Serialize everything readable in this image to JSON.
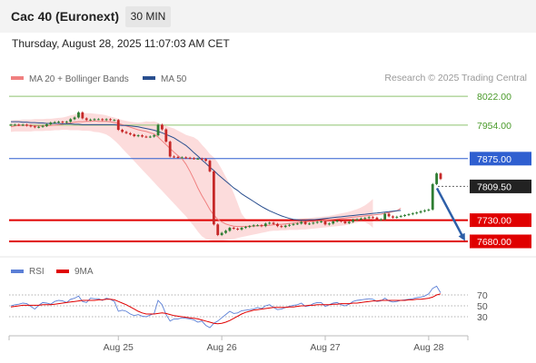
{
  "header": {
    "instrument": "Cac 40 (Euronext)",
    "timeframe": "30 MIN",
    "datetime": "Thursday, August 28, 2025 11:07:03 AM CET",
    "copyright": "Research © 2025 Trading Central"
  },
  "colors": {
    "candle_up": "#2e7d32",
    "candle_down": "#c62828",
    "bollinger_fill": "#fbd0d0",
    "ma20": "#f08080",
    "ma50": "#2a4f8f",
    "resistance_green": "#8dc26f",
    "pivot_blue": "#2f5fd0",
    "support_red": "#e00000",
    "current_price_box": "#222222",
    "arrow": "#2d5fa8",
    "rsi": "#5b7fd6",
    "rsi_ma": "#e00000"
  },
  "chart_data": [
    {
      "type": "candlestick",
      "title": "",
      "legend": [
        {
          "name": "MA 20 + Bollinger Bands",
          "color": "#f08080"
        },
        {
          "name": "MA 50",
          "color": "#2a4f8f"
        }
      ],
      "x_ticks": [
        {
          "label": "Aug 25",
          "index": 27
        },
        {
          "label": "Aug 26",
          "index": 53
        },
        {
          "label": "Aug 27",
          "index": 79
        },
        {
          "label": "Aug 28",
          "index": 105
        }
      ],
      "ylim": [
        7665,
        8035
      ],
      "levels": [
        {
          "label": "8022.00",
          "value": 8022,
          "kind": "resistance"
        },
        {
          "label": "7954.00",
          "value": 7954,
          "kind": "resistance"
        },
        {
          "label": "7875.00",
          "value": 7875,
          "kind": "pivot"
        },
        {
          "label": "7809.50",
          "value": 7809.5,
          "kind": "current"
        },
        {
          "label": "7730.00",
          "value": 7730,
          "kind": "support"
        },
        {
          "label": "7680.00",
          "value": 7680,
          "kind": "support"
        }
      ],
      "projection": {
        "from": 7809.5,
        "to": 7680
      },
      "close": [
        7955,
        7955,
        7954,
        7955,
        7953,
        7951,
        7949,
        7950,
        7952,
        7956,
        7960,
        7961,
        7962,
        7960,
        7962,
        7968,
        7972,
        7984,
        7970,
        7966,
        7967,
        7968,
        7968,
        7966,
        7968,
        7966,
        7966,
        7943,
        7938,
        7935,
        7932,
        7928,
        7930,
        7927,
        7926,
        7927,
        7930,
        7955,
        7944,
        7915,
        7880,
        7879,
        7878,
        7878,
        7877,
        7876,
        7875,
        7875,
        7874,
        7870,
        7845,
        7720,
        7695,
        7700,
        7705,
        7712,
        7710,
        7708,
        7712,
        7714,
        7716,
        7718,
        7718,
        7716,
        7722,
        7724,
        7721,
        7716,
        7714,
        7717,
        7719,
        7721,
        7722,
        7726,
        7721,
        7722,
        7724,
        7726,
        7727,
        7720,
        7722,
        7727,
        7729,
        7727,
        7723,
        7726,
        7731,
        7732,
        7734,
        7735,
        7737,
        7736,
        7731,
        7732,
        7745,
        7739,
        7736,
        7738,
        7740,
        7742,
        7744,
        7746,
        7748,
        7751,
        7753,
        7755,
        7815,
        7840,
        7827
      ],
      "ma20": [
        7950,
        7952,
        7953,
        7953,
        7953,
        7953,
        7952,
        7952,
        7952,
        7952,
        7953,
        7954,
        7955,
        7956,
        7958,
        7959,
        7961,
        7962,
        7962,
        7963,
        7963,
        7964,
        7963,
        7963,
        7963,
        7962,
        7960,
        7958,
        7955,
        7952,
        7949,
        7946,
        7943,
        7941,
        7939,
        7936,
        7933,
        7926,
        7917,
        7908,
        7899,
        7890,
        7882,
        7875,
        7862,
        7845,
        7826,
        7806,
        7788,
        7772,
        7755,
        7742,
        7732,
        7726,
        7721,
        7718,
        7716,
        7715,
        7715,
        7715,
        7716,
        7716,
        7717,
        7717,
        7718,
        7718,
        7719,
        7720,
        7720,
        7721,
        7722,
        7723,
        7724,
        7725,
        7726,
        7727,
        7727,
        7728,
        7729,
        7730,
        7731,
        7732,
        7733,
        7734,
        7735,
        7736,
        7737,
        7738,
        7739,
        7740,
        7741,
        7742,
        7743,
        7744,
        7746,
        7748,
        7750,
        7752,
        7758
      ],
      "ma50": [
        7962,
        7962,
        7962,
        7961,
        7961,
        7960,
        7960,
        7959,
        7959,
        7958,
        7958,
        7958,
        7958,
        7957,
        7957,
        7957,
        7956,
        7956,
        7955,
        7955,
        7955,
        7955,
        7955,
        7955,
        7955,
        7955,
        7955,
        7954,
        7953,
        7953,
        7952,
        7951,
        7950,
        7948,
        7946,
        7944,
        7942,
        7939,
        7936,
        7932,
        7928,
        7924,
        7918,
        7912,
        7906,
        7898,
        7889,
        7881,
        7872,
        7864,
        7855,
        7847,
        7838,
        7830,
        7822,
        7814,
        7806,
        7800,
        7792,
        7786,
        7780,
        7774,
        7768,
        7762,
        7757,
        7752,
        7748,
        7744,
        7740,
        7737,
        7734,
        7732,
        7731,
        7730,
        7730,
        7731,
        7731,
        7732,
        7733,
        7734,
        7735,
        7736,
        7737,
        7738,
        7739,
        7740,
        7741,
        7742,
        7743,
        7744,
        7745,
        7746,
        7747,
        7748,
        7749,
        7750,
        7751,
        7752,
        7753
      ],
      "bb_upper": [
        7965,
        7966,
        7966,
        7967,
        7967,
        7967,
        7968,
        7968,
        7968,
        7969,
        7969,
        7970,
        7971,
        7972,
        7974,
        7977,
        7979,
        7982,
        7982,
        7982,
        7982,
        7981,
        7980,
        7979,
        7977,
        7974,
        7972,
        7969,
        7966,
        7964,
        7962,
        7961,
        7960,
        7961,
        7963,
        7962,
        7963,
        7960,
        7955,
        7952,
        7949,
        7946,
        7941,
        7936,
        7931,
        7928,
        7925,
        7919,
        7908,
        7898,
        7886,
        7878,
        7866,
        7850,
        7832,
        7815,
        7794,
        7770,
        7745,
        7733,
        7730,
        7729,
        7729,
        7728,
        7728,
        7727,
        7728,
        7728,
        7728,
        7729,
        7730,
        7731,
        7732,
        7733,
        7734,
        7735,
        7736,
        7737,
        7738,
        7739,
        7740,
        7742,
        7744,
        7746,
        7748,
        7750,
        7753,
        7756,
        7760,
        7765,
        7772,
        7780
      ],
      "bb_lower": [
        7938,
        7939,
        7939,
        7939,
        7939,
        7939,
        7940,
        7940,
        7940,
        7941,
        7941,
        7942,
        7942,
        7943,
        7943,
        7942,
        7942,
        7942,
        7941,
        7941,
        7940,
        7938,
        7937,
        7935,
        7932,
        7926,
        7918,
        7909,
        7899,
        7889,
        7879,
        7869,
        7859,
        7849,
        7839,
        7829,
        7819,
        7809,
        7799,
        7789,
        7779,
        7769,
        7759,
        7749,
        7739,
        7727,
        7716,
        7703,
        7692,
        7686,
        7683,
        7682,
        7682,
        7682,
        7683,
        7684,
        7686,
        7688,
        7690,
        7692,
        7694,
        7696,
        7698,
        7700,
        7702,
        7704,
        7705,
        7705,
        7706,
        7706,
        7707,
        7707,
        7707,
        7708,
        7708,
        7709,
        7710,
        7711,
        7712,
        7713,
        7714,
        7715,
        7716,
        7717,
        7718,
        7720,
        7722,
        7724,
        7726,
        7725,
        7720,
        7712
      ]
    },
    {
      "type": "line",
      "title": "",
      "legend": [
        {
          "name": "RSI",
          "color": "#5b7fd6"
        },
        {
          "name": "9MA",
          "color": "#e00000"
        }
      ],
      "ylim": [
        0,
        100
      ],
      "levels": [
        70,
        50,
        30
      ],
      "y_ticks": [
        "70",
        "50",
        "30"
      ],
      "rsi": [
        50,
        52,
        53,
        55,
        54,
        49,
        44,
        51,
        56,
        55,
        53,
        58,
        60,
        59,
        56,
        62,
        64,
        68,
        58,
        56,
        64,
        63,
        63,
        60,
        64,
        62,
        58,
        40,
        42,
        40,
        35,
        32,
        34,
        31,
        30,
        33,
        36,
        60,
        52,
        34,
        22,
        26,
        26,
        28,
        27,
        26,
        24,
        20,
        22,
        14,
        10,
        18,
        22,
        28,
        34,
        40,
        36,
        37,
        41,
        42,
        43,
        44,
        47,
        45,
        50,
        52,
        47,
        43,
        44,
        47,
        49,
        51,
        52,
        55,
        49,
        50,
        54,
        56,
        56,
        49,
        52,
        55,
        56,
        52,
        50,
        53,
        58,
        60,
        61,
        62,
        63,
        62,
        58,
        59,
        64,
        59,
        57,
        58,
        60,
        61,
        62,
        63,
        65,
        66,
        68,
        72,
        82,
        86,
        74
      ],
      "rsi_ma": [
        48,
        49,
        50,
        51,
        51,
        51,
        51,
        51,
        52,
        52,
        52,
        53,
        54,
        55,
        56,
        57,
        58,
        59,
        60,
        60,
        60,
        60,
        61,
        61,
        62,
        62,
        61,
        58,
        55,
        52,
        48,
        44,
        40,
        37,
        35,
        35,
        35,
        36,
        37,
        36,
        34,
        32,
        31,
        30,
        29,
        28,
        27,
        26,
        24,
        22,
        20,
        18,
        17,
        18,
        20,
        23,
        27,
        31,
        35,
        38,
        40,
        42,
        43,
        44,
        45,
        46,
        47,
        47,
        47,
        47,
        48,
        48,
        49,
        50,
        50,
        51,
        51,
        52,
        52,
        52,
        52,
        53,
        53,
        54,
        54,
        54,
        55,
        55,
        56,
        57,
        58,
        59,
        59,
        60,
        60,
        60,
        60,
        60,
        60,
        60,
        61,
        61,
        62,
        62,
        63,
        64,
        66,
        70,
        72
      ]
    }
  ]
}
